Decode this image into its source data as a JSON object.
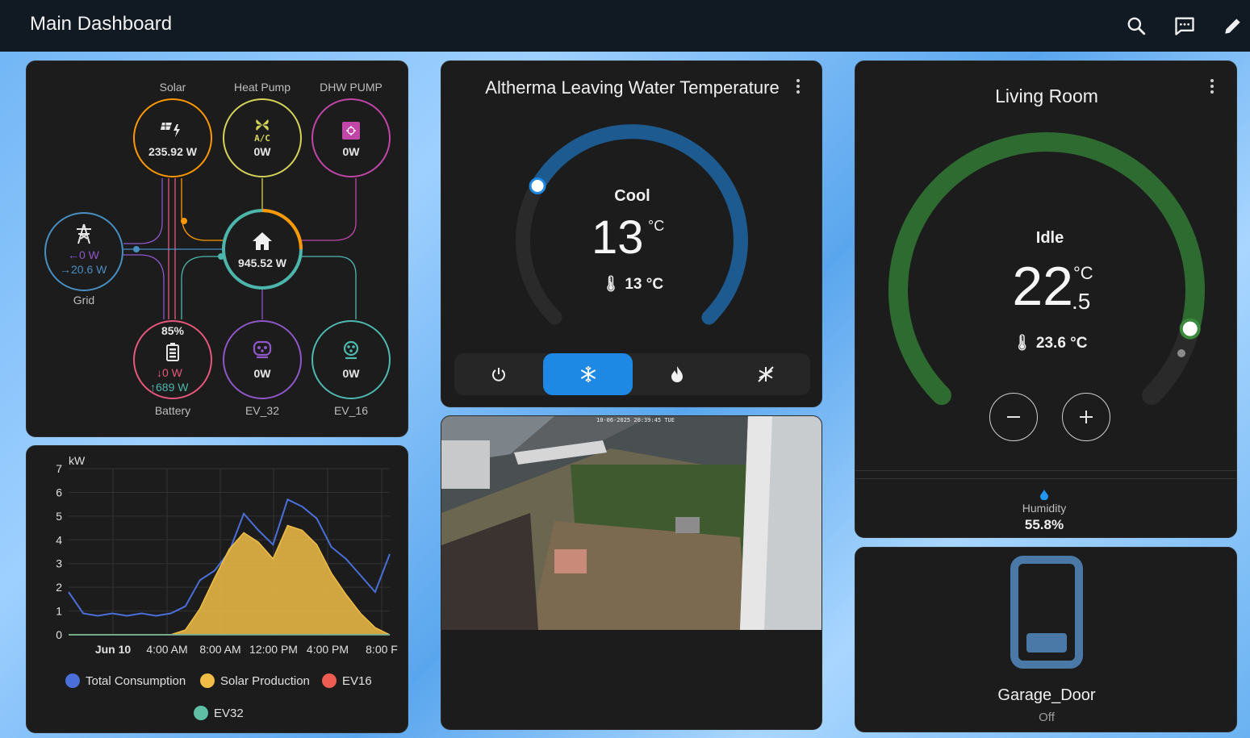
{
  "header": {
    "title": "Main Dashboard",
    "icons": [
      "search-icon",
      "chat-icon",
      "edit-icon"
    ]
  },
  "energy": {
    "solar": {
      "label": "Solar",
      "value": "235.92 W"
    },
    "heat_pump": {
      "label": "Heat Pump",
      "icon_text": "A/C",
      "value": "0W"
    },
    "dhw_pump": {
      "label": "DHW PUMP",
      "value": "0W"
    },
    "grid": {
      "label": "Grid",
      "in": "0 W",
      "out": "20.6 W"
    },
    "home": {
      "value": "945.52 W"
    },
    "battery": {
      "label": "Battery",
      "percent": "85%",
      "in": "0 W",
      "out": "689 W"
    },
    "ev32": {
      "label": "EV_32",
      "value": "0W"
    },
    "ev16": {
      "label": "EV_16",
      "value": "0W"
    },
    "colors": {
      "solar": "#ff9800",
      "heat_pump": "#d4d45a",
      "dhw": "#c046a8",
      "grid": "#488fc2",
      "home": "#4db6ac",
      "battery": "#e8577d",
      "ev32": "#8f57c8",
      "ev16": "#4fb8b0"
    }
  },
  "thermo1": {
    "title": "Altherma Leaving Water Temperature",
    "mode": "Cool",
    "target": "13",
    "unit": "°C",
    "current": "13 °C",
    "target_fraction": 0,
    "modes": [
      "power-icon",
      "snowflake-icon",
      "flame-icon",
      "auto-icon"
    ],
    "active_mode": "snowflake-icon",
    "accent": "#1e88e5"
  },
  "camera": {
    "timestamp": "10-06-2025 20:39:45 TUE"
  },
  "thermo2": {
    "title": "Living Room",
    "state": "Idle",
    "target_int": "22",
    "target_dec": ".5",
    "unit": "°C",
    "current": "23.6 °C",
    "target_fraction": 1,
    "humidity_label": "Humidity",
    "humidity_value": "55.8%",
    "accent": "#2e6b31"
  },
  "garage": {
    "name": "Garage_Door",
    "state": "Off",
    "level": 0.2,
    "accent": "#4a79a8"
  },
  "chart": {
    "unit": "kW",
    "legend": [
      {
        "name": "Total Consumption",
        "color": "#4a6fd8"
      },
      {
        "name": "Solar Production",
        "color": "#f1bd47"
      },
      {
        "name": "EV16",
        "color": "#ef5c52"
      },
      {
        "name": "EV32",
        "color": "#5fbfa5"
      }
    ]
  },
  "chart_data": {
    "type": "line",
    "ylabel": "kW",
    "ylim": [
      0,
      7
    ],
    "yticks": [
      "0",
      "1",
      "2",
      "3",
      "4",
      "5",
      "6",
      "7"
    ],
    "xticks": [
      "Jun 10",
      "4:00 AM",
      "8:00 AM",
      "12:00 PM",
      "4:00 PM",
      "8:00 F"
    ],
    "x": [
      0,
      1,
      2,
      3,
      4,
      5,
      6,
      7,
      8,
      9,
      10,
      11,
      12,
      13,
      14,
      15,
      16,
      17,
      18,
      19,
      20,
      21,
      22
    ],
    "series": [
      {
        "name": "Total Consumption",
        "values": [
          1.8,
          0.9,
          0.8,
          0.9,
          0.8,
          0.9,
          0.8,
          0.9,
          1.2,
          2.3,
          2.7,
          3.5,
          5.1,
          4.4,
          3.8,
          5.7,
          5.4,
          4.9,
          3.7,
          3.2,
          2.5,
          1.8,
          3.4
        ]
      },
      {
        "name": "Solar Production",
        "values": [
          0,
          0,
          0,
          0,
          0,
          0,
          0,
          0,
          0.2,
          1.1,
          2.4,
          3.6,
          4.3,
          3.9,
          3.2,
          4.6,
          4.4,
          3.8,
          2.6,
          1.7,
          0.9,
          0.3,
          0
        ]
      },
      {
        "name": "EV16",
        "values": [
          0,
          0,
          0,
          0,
          0,
          0,
          0,
          0,
          0,
          0,
          0,
          0,
          0,
          0,
          0,
          0,
          0,
          0,
          0,
          0,
          0,
          0,
          0
        ]
      },
      {
        "name": "EV32",
        "values": [
          0,
          0,
          0,
          0,
          0,
          0,
          0,
          0,
          0,
          0,
          0,
          0,
          0,
          0,
          0,
          0,
          0,
          0,
          0,
          0,
          0,
          0,
          0
        ]
      }
    ],
    "grid": true,
    "legend_position": "bottom"
  }
}
